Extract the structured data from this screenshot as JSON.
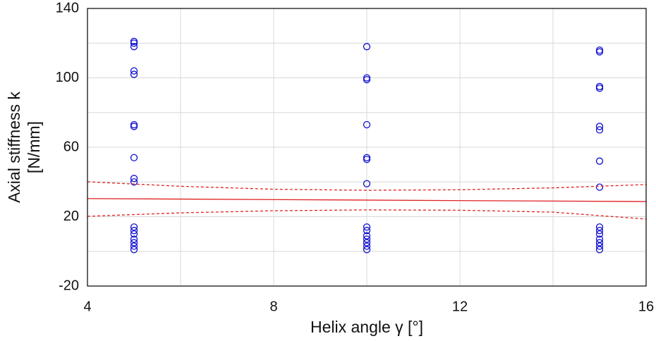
{
  "chart_data": {
    "type": "scatter",
    "xlabel": "Helix angle γ [°]",
    "ylabel": [
      "Axial stiffness k",
      "[N/mm]"
    ],
    "xlim": [
      4,
      16
    ],
    "ylim": [
      -20,
      140
    ],
    "xticks": [
      4,
      8,
      12,
      16
    ],
    "yticks": [
      -20,
      20,
      60,
      100,
      140
    ],
    "xgrid": [
      6,
      10,
      14
    ],
    "ygrid": [
      0,
      40,
      80,
      120
    ],
    "grid": true,
    "series": [
      {
        "type": "scatter",
        "color": "#1010d0",
        "x": [
          5,
          5,
          5,
          5,
          5,
          5,
          5,
          5,
          5,
          5,
          5,
          5,
          5,
          5,
          5,
          5,
          5,
          10,
          10,
          10,
          10,
          10,
          10,
          10,
          10,
          10,
          10,
          10,
          10,
          10,
          10,
          15,
          15,
          15,
          15,
          15,
          15,
          15,
          15,
          15,
          15,
          15,
          15,
          15,
          15,
          15
        ],
        "values": [
          121,
          120,
          118,
          104,
          102,
          73,
          72,
          54,
          42,
          40,
          14,
          12,
          10,
          7,
          5,
          3,
          1,
          118,
          100,
          99,
          73,
          54,
          53,
          39,
          14,
          12,
          9,
          7,
          5,
          3,
          1,
          116,
          115,
          95,
          94,
          72,
          70,
          52,
          37,
          14,
          12,
          10,
          7,
          5,
          3,
          1
        ]
      },
      {
        "type": "line",
        "color": "#e02020",
        "dash": false,
        "x": [
          4,
          16
        ],
        "values": [
          30.4,
          28.7
        ]
      },
      {
        "type": "line",
        "color": "#e02020",
        "dash": true,
        "x": [
          4,
          6,
          8,
          10,
          12,
          14,
          16
        ],
        "values": [
          40.1,
          37.5,
          35.8,
          35.2,
          35.5,
          36.6,
          38.5
        ]
      },
      {
        "type": "line",
        "color": "#e02020",
        "dash": true,
        "x": [
          4,
          6,
          8,
          10,
          12,
          14,
          16
        ],
        "values": [
          20.2,
          22.2,
          23.4,
          23.9,
          23.7,
          22.6,
          18.6
        ]
      }
    ]
  }
}
